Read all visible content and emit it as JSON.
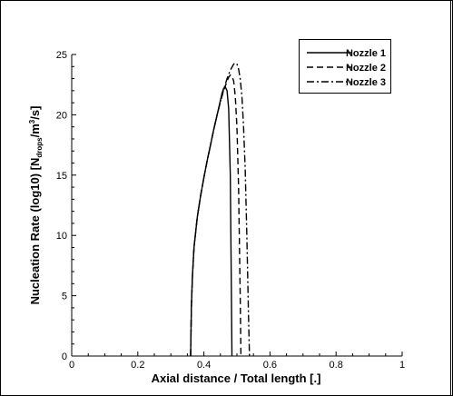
{
  "chart_data": {
    "type": "line",
    "title": "",
    "xlabel": "Axial distance / Total length [.]",
    "ylabel": {
      "prefix": "Nucleation  Rate (log10)  [N",
      "sub": "drops",
      "mid": "/m",
      "sup": "3",
      "suffix": "/s]"
    },
    "xlim": [
      0,
      1
    ],
    "ylim": [
      0,
      25
    ],
    "xticks": [
      0,
      0.2,
      0.4,
      0.6,
      0.8,
      1
    ],
    "xtick_labels": [
      "0",
      "0.2",
      "0.4",
      "0.6",
      "0.8",
      "1"
    ],
    "yticks": [
      0,
      5,
      10,
      15,
      20,
      25
    ],
    "ytick_labels": [
      "0",
      "5",
      "10",
      "15",
      "20",
      "25"
    ],
    "grid": false,
    "legend_position": "top-right",
    "series": [
      {
        "name": "Nozzle 1",
        "dash": "solid",
        "x": [
          0.36,
          0.362,
          0.365,
          0.37,
          0.38,
          0.39,
          0.4,
          0.41,
          0.42,
          0.43,
          0.44,
          0.45,
          0.455,
          0.46,
          0.465,
          0.47,
          0.475,
          0.48,
          0.483,
          0.485
        ],
        "y": [
          0,
          4,
          6.5,
          9,
          11.5,
          13.3,
          14.8,
          16.2,
          17.5,
          18.8,
          20,
          21.2,
          21.8,
          22.2,
          22.3,
          22,
          20.5,
          15,
          6,
          0
        ]
      },
      {
        "name": "Nozzle 2",
        "dash": "dashed",
        "x": [
          0.36,
          0.362,
          0.365,
          0.37,
          0.38,
          0.39,
          0.4,
          0.41,
          0.42,
          0.43,
          0.44,
          0.45,
          0.46,
          0.47,
          0.475,
          0.48,
          0.485,
          0.49,
          0.495,
          0.5,
          0.505,
          0.51,
          0.512
        ],
        "y": [
          0,
          4,
          6.5,
          9,
          11.5,
          13.3,
          14.8,
          16.2,
          17.5,
          18.8,
          20,
          21.1,
          22,
          22.8,
          23.1,
          23.3,
          23.2,
          22.8,
          21.5,
          19,
          14,
          5,
          0
        ]
      },
      {
        "name": "Nozzle 3",
        "dash": "dashdot",
        "x": [
          0.36,
          0.362,
          0.365,
          0.37,
          0.38,
          0.39,
          0.4,
          0.41,
          0.42,
          0.43,
          0.44,
          0.45,
          0.46,
          0.47,
          0.48,
          0.49,
          0.495,
          0.5,
          0.505,
          0.51,
          0.515,
          0.52,
          0.525,
          0.53,
          0.535,
          0.538
        ],
        "y": [
          0,
          4,
          6.5,
          9,
          11.5,
          13.3,
          14.8,
          16.2,
          17.5,
          18.8,
          20,
          21.1,
          22.1,
          23,
          23.7,
          24.2,
          24.3,
          24.2,
          23.8,
          23,
          21.5,
          19,
          15.5,
          10,
          3.5,
          0
        ]
      }
    ]
  }
}
